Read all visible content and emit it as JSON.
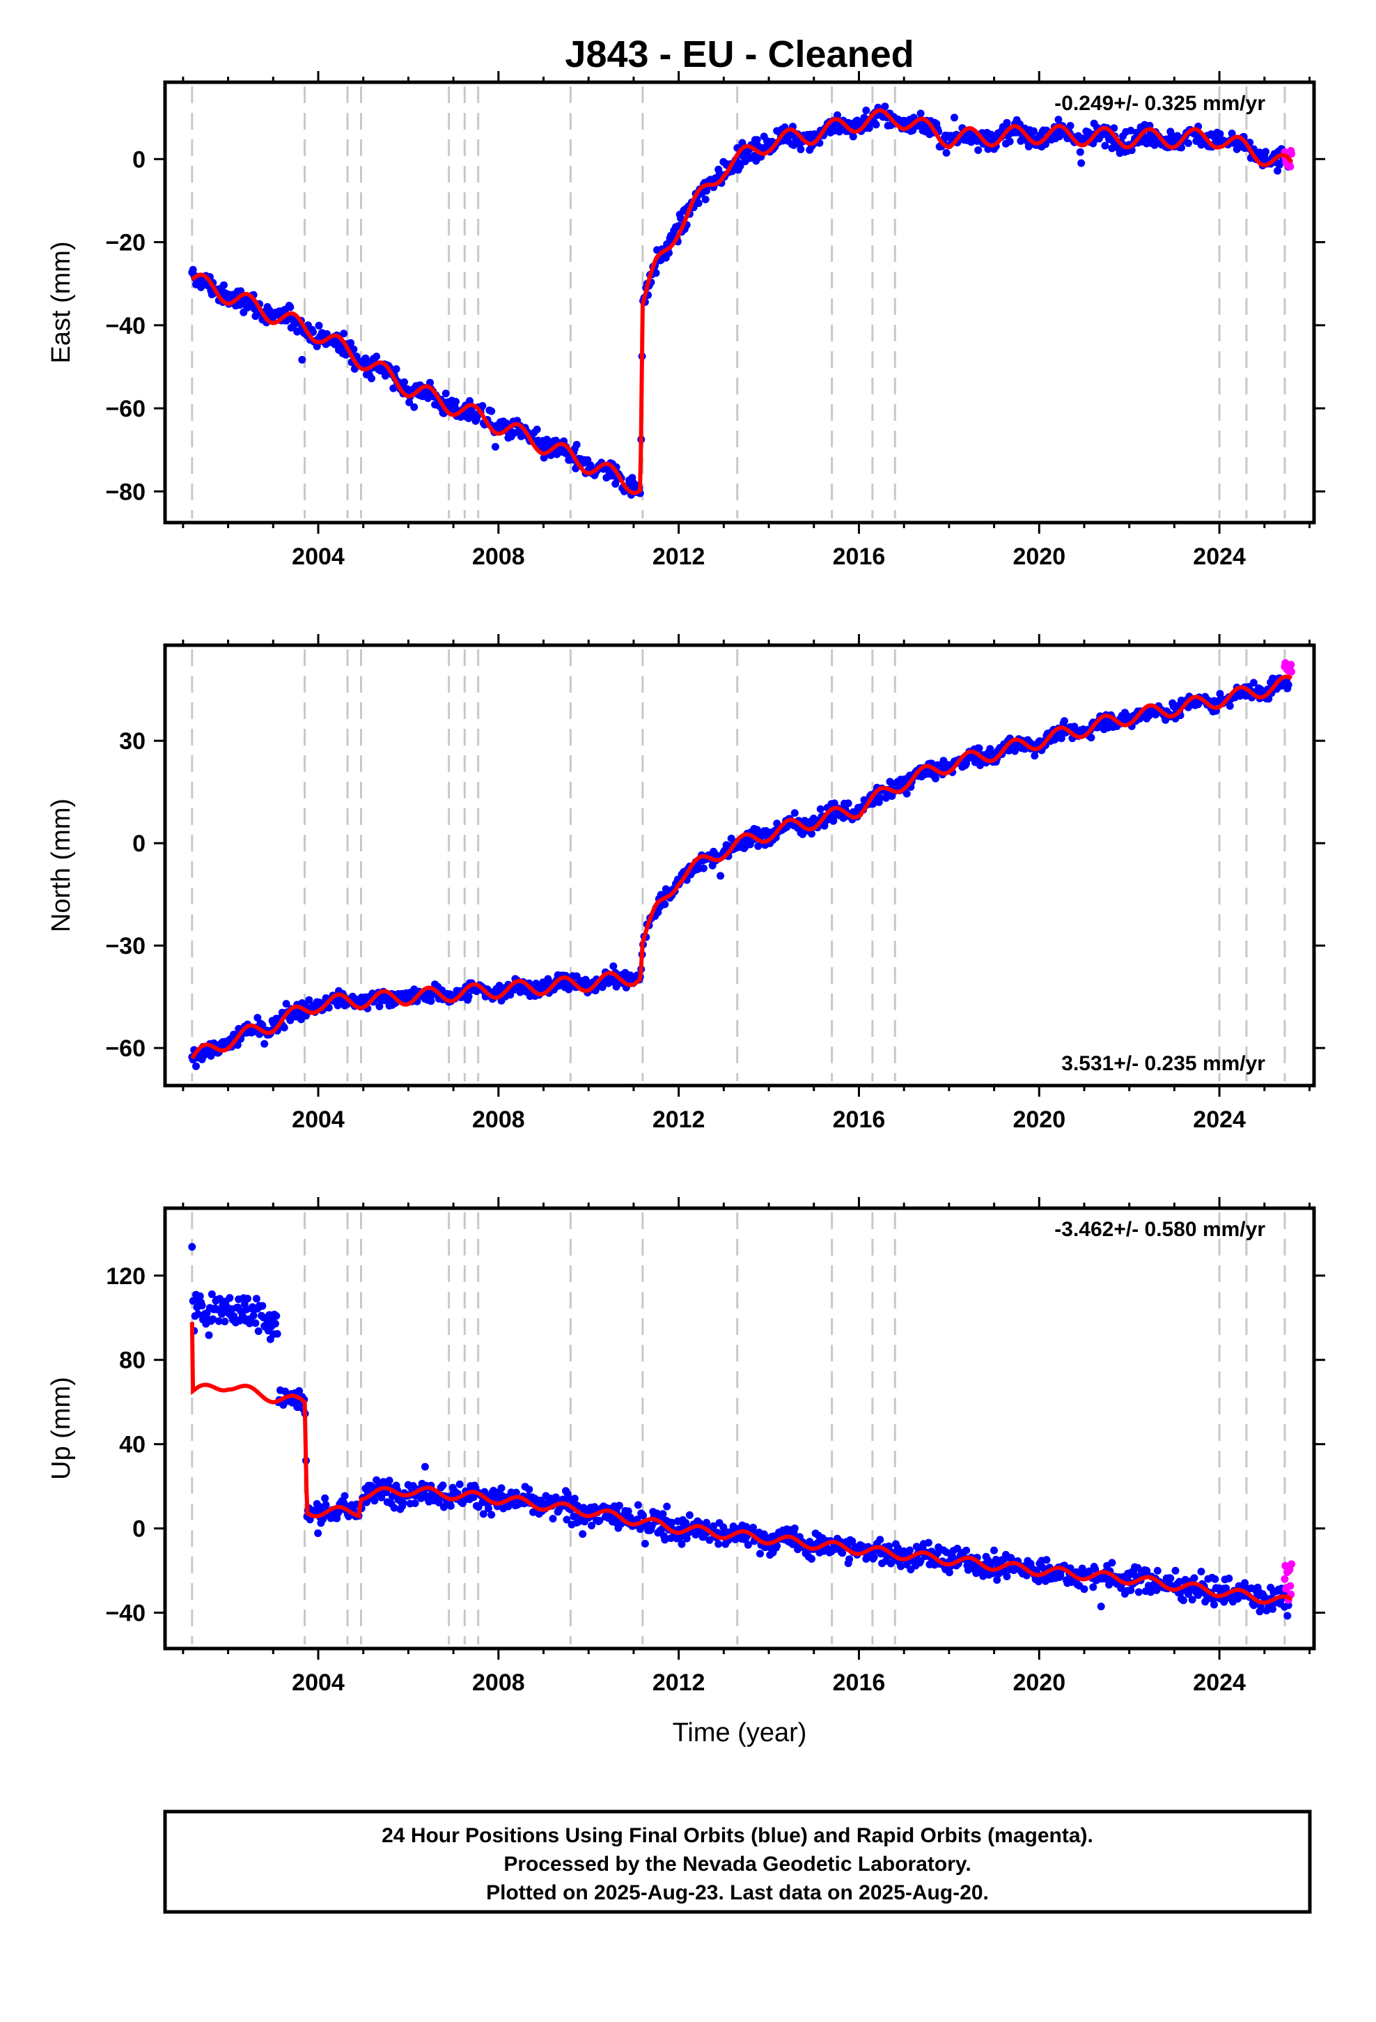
{
  "title": "J843  - EU - Cleaned",
  "xlabel": "Time (year)",
  "footer": {
    "line1": "24 Hour Positions Using Final Orbits (blue) and Rapid Orbits (magenta).",
    "line2": "Processed by the Nevada Geodetic Laboratory.",
    "line3": "Plotted on 2025-Aug-23. Last data on 2025-Aug-20."
  },
  "colors": {
    "final_orbits": "#0000ff",
    "rapid_orbits": "#ff00ff",
    "model": "#ff0000",
    "event_lines": "#c8c8c8"
  },
  "chart_data": [
    {
      "type": "scatter",
      "component": "East",
      "ylabel": "East (mm)",
      "rate_label": "-0.249+/- 0.325 mm/yr",
      "xlim": [
        2000.6,
        2026.1
      ],
      "ylim": [
        -87.5,
        18.5
      ],
      "x_ticks": [
        2004,
        2008,
        2012,
        2016,
        2020,
        2024
      ],
      "y_ticks": [
        -80,
        -60,
        -40,
        -20,
        0
      ],
      "events": [
        2001.2,
        2003.7,
        2004.65,
        2004.95,
        2006.9,
        2007.25,
        2007.55,
        2009.6,
        2011.2,
        2013.3,
        2015.4,
        2016.3,
        2016.8,
        2024.0,
        2024.6,
        2025.45
      ],
      "trend": [
        [
          2001.2,
          -29
        ],
        [
          2004.0,
          -42
        ],
        [
          2006.0,
          -55
        ],
        [
          2008.0,
          -64
        ],
        [
          2011.15,
          -79
        ],
        [
          2011.2,
          -35
        ],
        [
          2011.5,
          -26
        ],
        [
          2012.0,
          -16
        ],
        [
          2012.5,
          -9
        ],
        [
          2013.0,
          -2
        ],
        [
          2013.5,
          1
        ],
        [
          2014.0,
          4
        ],
        [
          2015.0,
          6
        ],
        [
          2016.0,
          9
        ],
        [
          2016.85,
          10
        ],
        [
          2018.0,
          5
        ],
        [
          2020.0,
          6
        ],
        [
          2022.0,
          5
        ],
        [
          2024.0,
          5
        ],
        [
          2025.6,
          -2
        ]
      ],
      "scatter": {
        "noise": 2.6,
        "outlier_mm": 6
      },
      "rapid": {
        "x": [
          2025.45,
          2025.6
        ],
        "y": [
          -2,
          2
        ]
      }
    },
    {
      "type": "scatter",
      "component": "North",
      "ylabel": "North (mm)",
      "rate_label": "3.531+/- 0.235 mm/yr",
      "xlim": [
        2000.6,
        2026.1
      ],
      "ylim": [
        -71,
        58
      ],
      "x_ticks": [
        2004,
        2008,
        2012,
        2016,
        2020,
        2024
      ],
      "y_ticks": [
        -60,
        -30,
        0,
        30
      ],
      "events": [
        2001.2,
        2003.7,
        2004.65,
        2004.95,
        2006.9,
        2007.25,
        2007.55,
        2009.6,
        2011.2,
        2013.3,
        2015.4,
        2016.3,
        2016.8,
        2024.0,
        2024.6,
        2025.45
      ],
      "trend": [
        [
          2001.2,
          -63
        ],
        [
          2002.0,
          -58
        ],
        [
          2003.0,
          -53
        ],
        [
          2004.0,
          -47
        ],
        [
          2006.0,
          -45
        ],
        [
          2008.0,
          -43
        ],
        [
          2010.0,
          -41
        ],
        [
          2011.15,
          -39
        ],
        [
          2011.2,
          -29
        ],
        [
          2011.5,
          -20
        ],
        [
          2012.0,
          -10
        ],
        [
          2013.0,
          -2
        ],
        [
          2014.0,
          3
        ],
        [
          2016.0,
          10
        ],
        [
          2017.0,
          18
        ],
        [
          2018.0,
          23
        ],
        [
          2020.0,
          30
        ],
        [
          2022.0,
          37
        ],
        [
          2024.0,
          42
        ],
        [
          2025.6,
          47
        ]
      ],
      "scatter": {
        "noise": 2.5,
        "outlier_mm": 6
      },
      "rapid": {
        "x": [
          2025.45,
          2025.6
        ],
        "y": [
          49,
          53
        ]
      }
    },
    {
      "type": "scatter",
      "component": "Up",
      "ylabel": "Up (mm)",
      "rate_label": "-3.462+/- 0.580 mm/yr",
      "xlim": [
        2000.6,
        2026.1
      ],
      "ylim": [
        -57,
        152
      ],
      "x_ticks": [
        2004,
        2008,
        2012,
        2016,
        2020,
        2024
      ],
      "y_ticks": [
        -40,
        0,
        40,
        80,
        120
      ],
      "events": [
        2001.2,
        2003.7,
        2004.65,
        2004.95,
        2006.9,
        2007.25,
        2007.55,
        2009.6,
        2011.2,
        2013.3,
        2015.4,
        2016.3,
        2016.8,
        2024.0,
        2024.6,
        2025.45
      ],
      "trend": [
        [
          2001.2,
          98
        ],
        [
          2001.22,
          65
        ],
        [
          2002.0,
          68
        ],
        [
          2003.0,
          62
        ],
        [
          2003.7,
          60
        ],
        [
          2003.75,
          8
        ],
        [
          2004.9,
          8
        ],
        [
          2004.95,
          16
        ],
        [
          2006.0,
          18
        ],
        [
          2008.0,
          14
        ],
        [
          2010.0,
          8
        ],
        [
          2012.0,
          0
        ],
        [
          2014.0,
          -5
        ],
        [
          2016.0,
          -10
        ],
        [
          2018.0,
          -15
        ],
        [
          2020.0,
          -20
        ],
        [
          2022.0,
          -24
        ],
        [
          2024.0,
          -30
        ],
        [
          2025.6,
          -35
        ]
      ],
      "scatter_segments": [
        {
          "x0": 2001.2,
          "x1": 2003.1,
          "offset": 37,
          "noise": 9
        },
        {
          "x0": 2003.1,
          "x1": 2025.6,
          "offset": 0,
          "noise": 6
        }
      ],
      "scatter": {
        "outlier_mm": 15
      },
      "rapid": {
        "x": [
          2025.45,
          2025.6
        ],
        "y": [
          -38,
          -14
        ]
      }
    }
  ]
}
